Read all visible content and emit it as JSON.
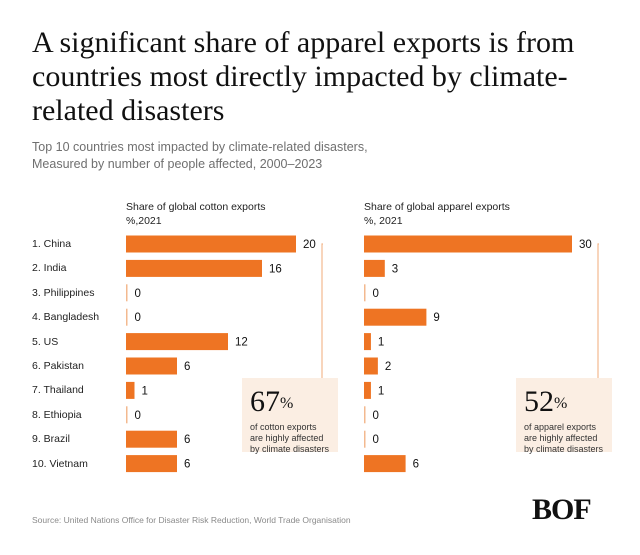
{
  "header": {
    "title": "A significant share of apparel exports is from countries most directly impacted by climate-related disasters",
    "subtitle_line1": "Top 10 countries most impacted by climate-related disasters,",
    "subtitle_line2": "Measured by number of people affected, 2000–2023"
  },
  "colors": {
    "bar": "#ee7423",
    "callout_bg": "#fbeee3",
    "bracket": "#f3b98f"
  },
  "rows": [
    "1.  China",
    "2.  India",
    "3.  Philippines",
    "4.  Bangladesh",
    "5.  US",
    "6.  Pakistan",
    "7.  Thailand",
    "8.  Ethiopia",
    "9.  Brazil",
    "10. Vietnam"
  ],
  "chart_data": [
    {
      "type": "bar",
      "title": "Share of global cotton exports",
      "unit": "%,2021",
      "categories": [
        "China",
        "India",
        "Philippines",
        "Bangladesh",
        "US",
        "Pakistan",
        "Thailand",
        "Ethiopia",
        "Brazil",
        "Vietnam"
      ],
      "values": [
        20,
        16,
        0,
        0,
        12,
        6,
        1,
        0,
        6,
        6
      ],
      "callout": {
        "value": "67",
        "unit": "%",
        "text": "of cotton exports are highly affected by climate disasters"
      }
    },
    {
      "type": "bar",
      "title": "Share of global apparel exports",
      "unit": "%, 2021",
      "categories": [
        "China",
        "India",
        "Philippines",
        "Bangladesh",
        "US",
        "Pakistan",
        "Thailand",
        "Ethiopia",
        "Brazil",
        "Vietnam"
      ],
      "values": [
        30,
        3,
        0,
        9,
        1,
        2,
        1,
        0,
        0,
        6
      ],
      "callout": {
        "value": "52",
        "unit": "%",
        "text": "of apparel exports are highly affected by climate disasters"
      }
    }
  ],
  "footer": {
    "source": "Source: United Nations Office for Disaster Risk Reduction, World Trade Organisation",
    "logo": "BOF"
  }
}
